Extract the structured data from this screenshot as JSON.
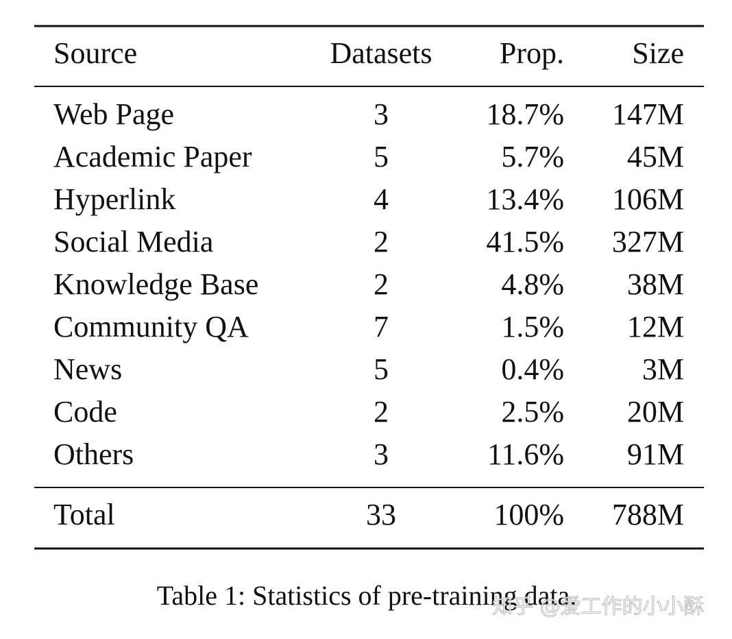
{
  "table": {
    "header": [
      "Source",
      "Datasets",
      "Prop.",
      "Size"
    ],
    "rows": [
      [
        "Web Page",
        "3",
        "18.7%",
        "147M"
      ],
      [
        "Academic Paper",
        "5",
        "5.7%",
        "45M"
      ],
      [
        "Hyperlink",
        "4",
        "13.4%",
        "106M"
      ],
      [
        "Social Media",
        "2",
        "41.5%",
        "327M"
      ],
      [
        "Knowledge Base",
        "2",
        "4.8%",
        "38M"
      ],
      [
        "Community QA",
        "7",
        "1.5%",
        "12M"
      ],
      [
        "News",
        "5",
        "0.4%",
        "3M"
      ],
      [
        "Code",
        "2",
        "2.5%",
        "20M"
      ],
      [
        "Others",
        "3",
        "11.6%",
        "91M"
      ]
    ],
    "total": [
      "Total",
      "33",
      "100%",
      "788M"
    ]
  },
  "caption": "Table 1: Statistics of pre-training data.",
  "watermark": "知乎 @爱工作的小小酥"
}
